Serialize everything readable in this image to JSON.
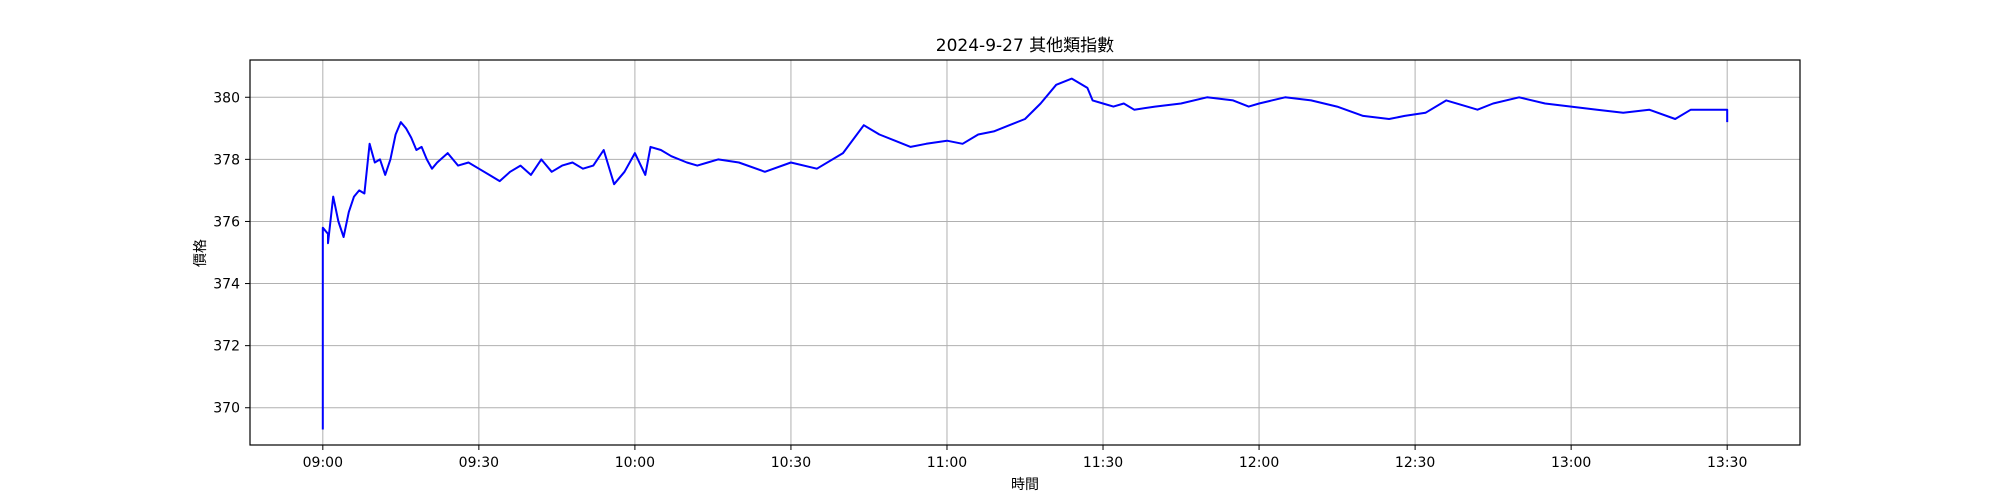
{
  "chart_data": {
    "type": "line",
    "title": "2024-9-27 其他類指數",
    "xlabel": "時間",
    "ylabel": "價格",
    "x_ticks": [
      "09:00",
      "09:30",
      "10:00",
      "10:30",
      "11:00",
      "11:30",
      "12:00",
      "12:30",
      "13:00",
      "13:30"
    ],
    "y_ticks": [
      370,
      372,
      374,
      376,
      378,
      380
    ],
    "xlim": [
      "08:46",
      "13:44"
    ],
    "ylim": [
      368.8,
      381.2
    ],
    "grid": true,
    "legend": "none",
    "series": [
      {
        "color": "#0000ff",
        "x": [
          "09:00",
          "09:00",
          "09:00",
          "09:01",
          "09:01",
          "09:02",
          "09:03",
          "09:04",
          "09:05",
          "09:06",
          "09:07",
          "09:08",
          "09:09",
          "09:10",
          "09:11",
          "09:12",
          "09:13",
          "09:14",
          "09:15",
          "09:16",
          "09:17",
          "09:18",
          "09:19",
          "09:20",
          "09:21",
          "09:22",
          "09:24",
          "09:26",
          "09:28",
          "09:30",
          "09:32",
          "09:34",
          "09:36",
          "09:38",
          "09:40",
          "09:42",
          "09:44",
          "09:46",
          "09:48",
          "09:50",
          "09:52",
          "09:54",
          "09:56",
          "09:58",
          "10:00",
          "10:02",
          "10:03",
          "10:05",
          "10:07",
          "10:10",
          "10:12",
          "10:14",
          "10:16",
          "10:20",
          "10:25",
          "10:30",
          "10:35",
          "10:40",
          "10:44",
          "10:47",
          "10:50",
          "10:53",
          "10:56",
          "11:00",
          "11:03",
          "11:06",
          "11:09",
          "11:12",
          "11:15",
          "11:18",
          "11:21",
          "11:24",
          "11:27",
          "11:28",
          "11:30",
          "11:32",
          "11:34",
          "11:36",
          "11:40",
          "11:45",
          "11:50",
          "11:55",
          "11:58",
          "12:00",
          "12:05",
          "12:10",
          "12:15",
          "12:20",
          "12:25",
          "12:28",
          "12:32",
          "12:36",
          "12:40",
          "12:42",
          "12:45",
          "12:50",
          "12:55",
          "13:00",
          "13:05",
          "13:10",
          "13:15",
          "13:20",
          "13:23",
          "13:25",
          "13:30",
          "13:30"
        ],
        "values": [
          369.3,
          371.0,
          375.8,
          375.6,
          375.3,
          376.8,
          376.0,
          375.5,
          376.3,
          376.8,
          377.0,
          376.9,
          378.5,
          377.9,
          378.0,
          377.5,
          378.0,
          378.8,
          379.2,
          379.0,
          378.7,
          378.3,
          378.4,
          378.0,
          377.7,
          377.9,
          378.2,
          377.8,
          377.9,
          377.7,
          377.5,
          377.3,
          377.6,
          377.8,
          377.5,
          378.0,
          377.6,
          377.8,
          377.9,
          377.7,
          377.8,
          378.3,
          377.2,
          377.6,
          378.2,
          377.5,
          378.4,
          378.3,
          378.1,
          377.9,
          377.8,
          377.9,
          378.0,
          377.9,
          377.6,
          377.9,
          377.7,
          378.2,
          379.1,
          378.8,
          378.6,
          378.4,
          378.5,
          378.6,
          378.5,
          378.8,
          378.9,
          379.1,
          379.3,
          379.8,
          380.4,
          380.6,
          380.3,
          379.9,
          379.8,
          379.7,
          379.8,
          379.6,
          379.7,
          379.8,
          380.0,
          379.9,
          379.7,
          379.8,
          380.0,
          379.9,
          379.7,
          379.4,
          379.3,
          379.4,
          379.5,
          379.9,
          379.7,
          379.6,
          379.8,
          380.0,
          379.8,
          379.7,
          379.6,
          379.5,
          379.6,
          379.3,
          379.6,
          379.6,
          379.6,
          379.2
        ]
      }
    ]
  }
}
